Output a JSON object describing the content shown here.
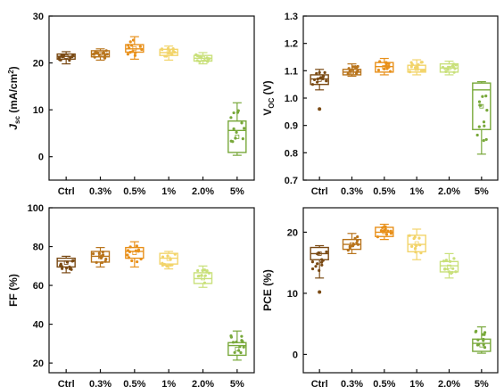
{
  "chart_data": [
    {
      "type": "box",
      "ylabel_main": "J",
      "ylabel_sub": "sc",
      "ylabel_unit": " (mA/cm",
      "ylabel_sup": "2",
      "ylabel_end": ")",
      "ylim": [
        -5,
        30
      ],
      "yticks": [
        "0",
        "10",
        "20",
        "30"
      ],
      "categories": [
        "Ctrl",
        "0.3%",
        "0.5%",
        "1%",
        "2.0%",
        "5%"
      ],
      "colors": [
        "#7a4a14",
        "#b8741c",
        "#e8901a",
        "#f2d46a",
        "#c9e07a",
        "#78a83a"
      ],
      "boxes": [
        {
          "q1": 20.8,
          "median": 21.4,
          "q3": 21.9,
          "min": 19.8,
          "max": 22.4
        },
        {
          "q1": 21.3,
          "median": 21.9,
          "q3": 22.6,
          "min": 20.6,
          "max": 23.0
        },
        {
          "q1": 22.3,
          "median": 23.0,
          "q3": 23.9,
          "min": 20.8,
          "max": 25.6
        },
        {
          "q1": 21.6,
          "median": 22.2,
          "q3": 22.9,
          "min": 20.6,
          "max": 23.6
        },
        {
          "q1": 20.4,
          "median": 21.0,
          "q3": 21.6,
          "min": 19.8,
          "max": 22.2
        },
        {
          "q1": 0.9,
          "median": 5.6,
          "q3": 7.6,
          "min": 0.3,
          "max": 11.5
        }
      ]
    },
    {
      "type": "box",
      "ylabel_main": "V",
      "ylabel_sub": "OC",
      "ylabel_unit": " (V)",
      "ylabel_sup": "",
      "ylabel_end": "",
      "ylim": [
        0.7,
        1.3
      ],
      "yticks": [
        "0.7",
        "0.8",
        "0.9",
        "1.0",
        "1.1",
        "1.2",
        "1.3"
      ],
      "categories": [
        "Ctrl",
        "0.3%",
        "0.5%",
        "1%",
        "2.0%",
        "5%"
      ],
      "colors": [
        "#7a4a14",
        "#b8741c",
        "#e8901a",
        "#f2d46a",
        "#c9e07a",
        "#78a83a"
      ],
      "boxes": [
        {
          "q1": 1.05,
          "median": 1.07,
          "q3": 1.085,
          "min": 1.03,
          "max": 1.105,
          "outliers": [
            0.96
          ]
        },
        {
          "q1": 1.085,
          "median": 1.095,
          "q3": 1.105,
          "min": 1.08,
          "max": 1.125
        },
        {
          "q1": 1.095,
          "median": 1.115,
          "q3": 1.13,
          "min": 1.085,
          "max": 1.145
        },
        {
          "q1": 1.095,
          "median": 1.105,
          "q3": 1.12,
          "min": 1.085,
          "max": 1.14
        },
        {
          "q1": 1.095,
          "median": 1.11,
          "q3": 1.125,
          "min": 1.085,
          "max": 1.135
        },
        {
          "q1": 0.885,
          "median": 1.03,
          "q3": 1.055,
          "min": 0.795,
          "max": 1.06
        }
      ]
    },
    {
      "type": "box",
      "ylabel_main": "FF (%)",
      "ylabel_sub": "",
      "ylabel_unit": "",
      "ylabel_sup": "",
      "ylabel_end": "",
      "ylim": [
        15,
        100
      ],
      "yticks": [
        "20",
        "40",
        "60",
        "80",
        "100"
      ],
      "categories": [
        "Ctrl",
        "0.3%",
        "0.5%",
        "1%",
        "2.0%",
        "5%"
      ],
      "colors": [
        "#7a4a14",
        "#b8741c",
        "#e8901a",
        "#f2d46a",
        "#c9e07a",
        "#78a83a"
      ],
      "boxes": [
        {
          "q1": 69.5,
          "median": 72.5,
          "q3": 74.0,
          "min": 66.5,
          "max": 75.0
        },
        {
          "q1": 72.0,
          "median": 75.0,
          "q3": 77.5,
          "min": 69.5,
          "max": 79.5
        },
        {
          "q1": 74.0,
          "median": 77.5,
          "q3": 79.5,
          "min": 69.5,
          "max": 82.5
        },
        {
          "q1": 71.0,
          "median": 74.0,
          "q3": 76.5,
          "min": 68.5,
          "max": 77.5
        },
        {
          "q1": 61.0,
          "median": 63.5,
          "q3": 66.5,
          "min": 59.0,
          "max": 70.0
        },
        {
          "q1": 24.0,
          "median": 29.0,
          "q3": 30.5,
          "min": 21.5,
          "max": 36.5
        }
      ]
    },
    {
      "type": "box",
      "ylabel_main": "PCE (%)",
      "ylabel_sub": "",
      "ylabel_unit": "",
      "ylabel_sup": "",
      "ylabel_end": "",
      "ylim": [
        -3,
        24
      ],
      "yticks": [
        "0",
        "10",
        "20"
      ],
      "categories": [
        "Ctrl",
        "0.3%",
        "0.5%",
        "1%",
        "2.0%",
        "5%"
      ],
      "colors": [
        "#7a4a14",
        "#b8741c",
        "#e8901a",
        "#f2d46a",
        "#c9e07a",
        "#78a83a"
      ],
      "boxes": [
        {
          "q1": 15.5,
          "median": 16.5,
          "q3": 17.5,
          "min": 12.5,
          "max": 17.8,
          "outliers": [
            10.2
          ]
        },
        {
          "q1": 17.2,
          "median": 18.0,
          "q3": 18.8,
          "min": 16.5,
          "max": 19.8
        },
        {
          "q1": 19.3,
          "median": 20.0,
          "q3": 20.8,
          "min": 18.8,
          "max": 21.3
        },
        {
          "q1": 16.8,
          "median": 18.0,
          "q3": 19.5,
          "min": 15.5,
          "max": 20.5
        },
        {
          "q1": 13.5,
          "median": 14.5,
          "q3": 15.2,
          "min": 12.5,
          "max": 16.5
        },
        {
          "q1": 0.5,
          "median": 1.8,
          "q3": 2.5,
          "min": 0.2,
          "max": 4.5
        }
      ]
    }
  ]
}
